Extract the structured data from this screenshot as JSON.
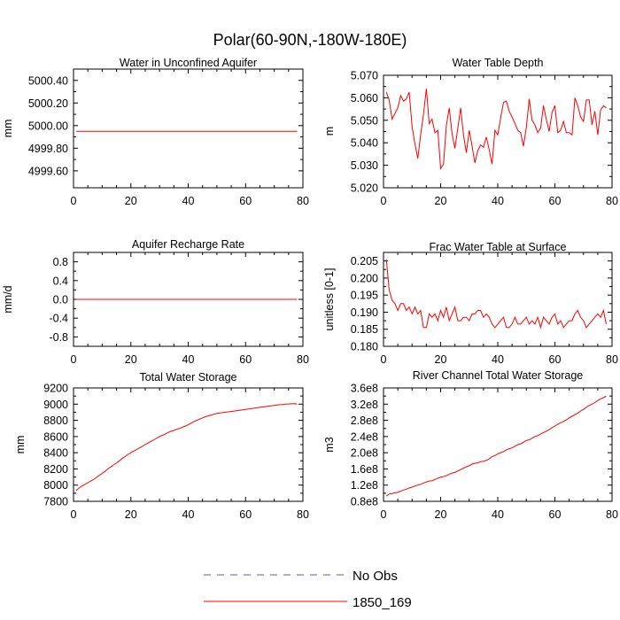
{
  "figure_title": "Polar(60-90N,-180W-180E)",
  "legend": [
    {
      "label": "No Obs",
      "color": "#5a5ab4",
      "dash": true
    },
    {
      "label": "1850_169",
      "color": "#ff0000",
      "dash": false
    }
  ],
  "chart_data": [
    {
      "id": "unconfined-aquifer",
      "type": "line",
      "title": "Water in Unconfined Aquifer",
      "ylabel": "mm",
      "xlim": [
        0,
        80
      ],
      "ylim": [
        4999.45,
        5000.5
      ],
      "xticks": [
        0,
        20,
        40,
        60,
        80
      ],
      "yticks": [
        4999.6,
        4999.8,
        5000.0,
        5000.2,
        5000.4
      ],
      "ytick_labels": [
        "4999.60",
        "4999.80",
        "5000.00",
        "5000.20",
        "5000.40"
      ],
      "series": [
        {
          "name": "1850_169",
          "color": "#ff0000",
          "x": [
            1,
            78
          ],
          "y": [
            4999.95,
            4999.95
          ]
        }
      ]
    },
    {
      "id": "water-table-depth",
      "type": "line",
      "title": "Water Table Depth",
      "ylabel": "m",
      "xlim": [
        0,
        80
      ],
      "ylim": [
        5.02,
        5.07
      ],
      "xticks": [
        0,
        20,
        40,
        60,
        80
      ],
      "yticks": [
        5.02,
        5.03,
        5.04,
        5.05,
        5.06,
        5.07
      ],
      "ytick_labels": [
        "5.020",
        "5.030",
        "5.040",
        "5.050",
        "5.060",
        "5.070"
      ],
      "series": [
        {
          "name": "1850_169",
          "color": "#ff0000",
          "x": [
            1,
            2,
            3,
            4,
            5,
            6,
            7,
            8,
            9,
            10,
            11,
            12,
            13,
            14,
            15,
            16,
            17,
            18,
            19,
            20,
            21,
            22,
            23,
            24,
            25,
            26,
            27,
            28,
            29,
            30,
            31,
            32,
            33,
            34,
            35,
            36,
            37,
            38,
            39,
            40,
            41,
            42,
            43,
            44,
            45,
            46,
            47,
            48,
            49,
            50,
            51,
            52,
            53,
            54,
            55,
            56,
            57,
            58,
            59,
            60,
            61,
            62,
            63,
            64,
            65,
            66,
            67,
            68,
            69,
            70,
            71,
            72,
            73,
            74,
            75,
            76,
            77,
            78
          ],
          "y": [
            5.0625,
            5.059,
            5.0505,
            5.053,
            5.0555,
            5.061,
            5.0585,
            5.0595,
            5.0625,
            5.047,
            5.0395,
            5.033,
            5.0435,
            5.0525,
            5.064,
            5.0485,
            5.0505,
            5.0445,
            5.0455,
            5.0285,
            5.0305,
            5.0475,
            5.0555,
            5.044,
            5.0375,
            5.0465,
            5.0555,
            5.0435,
            5.0355,
            5.0455,
            5.0385,
            5.031,
            5.0365,
            5.039,
            5.038,
            5.0425,
            5.037,
            5.0305,
            5.0455,
            5.0435,
            5.051,
            5.058,
            5.0585,
            5.054,
            5.0515,
            5.0485,
            5.0455,
            5.0445,
            5.0385,
            5.047,
            5.0595,
            5.05,
            5.048,
            5.0445,
            5.0465,
            5.0565,
            5.0505,
            5.045,
            5.0535,
            5.0565,
            5.0445,
            5.0455,
            5.0495,
            5.0445,
            5.0445,
            5.0435,
            5.06,
            5.0565,
            5.0515,
            5.0495,
            5.059,
            5.059,
            5.048,
            5.054,
            5.0435,
            5.0545,
            5.0565,
            5.0555
          ]
        }
      ]
    },
    {
      "id": "aquifer-recharge-rate",
      "type": "line",
      "title": "Aquifer Recharge Rate",
      "ylabel": "mm/d",
      "xlim": [
        0,
        80
      ],
      "ylim": [
        -1.0,
        1.0
      ],
      "xticks": [
        0,
        20,
        40,
        60,
        80
      ],
      "yticks": [
        -0.8,
        -0.4,
        0.0,
        0.4,
        0.8
      ],
      "ytick_labels": [
        "-0.8",
        "-0.4",
        "0.0",
        "0.4",
        "0.8"
      ],
      "series": [
        {
          "name": "1850_169",
          "color": "#ff0000",
          "x": [
            1,
            78
          ],
          "y": [
            0.0,
            0.0
          ]
        }
      ]
    },
    {
      "id": "frac-water-table",
      "type": "line",
      "title": "Frac Water Table at Surface",
      "ylabel": "unitless [0-1]",
      "xlim": [
        0,
        80
      ],
      "ylim": [
        0.18,
        0.2075
      ],
      "xticks": [
        0,
        20,
        40,
        60,
        80
      ],
      "yticks": [
        0.18,
        0.185,
        0.19,
        0.195,
        0.2,
        0.205
      ],
      "ytick_labels": [
        "0.180",
        "0.185",
        "0.190",
        "0.195",
        "0.200",
        "0.205"
      ],
      "series": [
        {
          "name": "1850_169",
          "color": "#ff0000",
          "x": [
            1,
            2,
            3,
            4,
            5,
            6,
            7,
            8,
            9,
            10,
            11,
            12,
            13,
            14,
            15,
            16,
            17,
            18,
            19,
            20,
            21,
            22,
            23,
            24,
            25,
            26,
            27,
            28,
            29,
            30,
            31,
            32,
            33,
            34,
            35,
            36,
            37,
            38,
            39,
            40,
            41,
            42,
            43,
            44,
            45,
            46,
            47,
            48,
            49,
            50,
            51,
            52,
            53,
            54,
            55,
            56,
            57,
            58,
            59,
            60,
            61,
            62,
            63,
            64,
            65,
            66,
            67,
            68,
            69,
            70,
            71,
            72,
            73,
            74,
            75,
            76,
            77,
            78
          ],
          "y": [
            0.2055,
            0.1965,
            0.1935,
            0.1925,
            0.1905,
            0.1925,
            0.1925,
            0.1905,
            0.1915,
            0.1895,
            0.1915,
            0.1895,
            0.1905,
            0.1855,
            0.1855,
            0.1895,
            0.1885,
            0.1895,
            0.1875,
            0.1905,
            0.1885,
            0.1915,
            0.1875,
            0.1895,
            0.1915,
            0.1875,
            0.1875,
            0.1885,
            0.1885,
            0.1875,
            0.1895,
            0.1895,
            0.1905,
            0.1905,
            0.1885,
            0.1895,
            0.1885,
            0.1865,
            0.1855,
            0.1865,
            0.1875,
            0.1885,
            0.1855,
            0.1855,
            0.1865,
            0.1885,
            0.1865,
            0.1865,
            0.1875,
            0.1885,
            0.1865,
            0.1875,
            0.1865,
            0.1885,
            0.1855,
            0.1885,
            0.1875,
            0.1865,
            0.1885,
            0.1895,
            0.1865,
            0.1875,
            0.1855,
            0.1865,
            0.1875,
            0.1875,
            0.1895,
            0.1905,
            0.1885,
            0.1875,
            0.1855,
            0.1865,
            0.1875,
            0.1885,
            0.1895,
            0.1885,
            0.1905,
            0.1865
          ]
        }
      ]
    },
    {
      "id": "total-water-storage",
      "type": "line",
      "title": "Total Water Storage",
      "ylabel": "mm",
      "xlim": [
        0,
        80
      ],
      "ylim": [
        7800,
        9200
      ],
      "xticks": [
        0,
        20,
        40,
        60,
        80
      ],
      "yticks": [
        7800,
        8000,
        8200,
        8400,
        8600,
        8800,
        9000,
        9200
      ],
      "ytick_labels": [
        "7800",
        "8000",
        "8200",
        "8400",
        "8600",
        "8800",
        "9000",
        "9200"
      ],
      "series": [
        {
          "name": "1850_169",
          "color": "#ff0000",
          "x": [
            1,
            2,
            3,
            4,
            5,
            6,
            7,
            8,
            9,
            10,
            11,
            12,
            13,
            14,
            15,
            16,
            17,
            18,
            19,
            20,
            21,
            22,
            23,
            24,
            25,
            26,
            27,
            28,
            29,
            30,
            31,
            32,
            33,
            34,
            35,
            36,
            37,
            38,
            39,
            40,
            41,
            42,
            43,
            44,
            45,
            46,
            47,
            48,
            49,
            50,
            51,
            52,
            53,
            54,
            55,
            56,
            57,
            58,
            59,
            60,
            61,
            62,
            63,
            64,
            65,
            66,
            67,
            68,
            69,
            70,
            71,
            72,
            73,
            74,
            75,
            76,
            77,
            78
          ],
          "y": [
            7935,
            7965,
            7990,
            8010,
            8030,
            8050,
            8070,
            8095,
            8120,
            8145,
            8170,
            8200,
            8225,
            8250,
            8275,
            8300,
            8330,
            8355,
            8380,
            8400,
            8420,
            8440,
            8460,
            8480,
            8500,
            8520,
            8540,
            8560,
            8580,
            8600,
            8615,
            8630,
            8650,
            8665,
            8675,
            8690,
            8700,
            8715,
            8730,
            8745,
            8765,
            8785,
            8800,
            8815,
            8830,
            8845,
            8855,
            8865,
            8875,
            8885,
            8890,
            8895,
            8900,
            8905,
            8910,
            8915,
            8920,
            8925,
            8930,
            8935,
            8940,
            8945,
            8950,
            8955,
            8960,
            8965,
            8970,
            8975,
            8980,
            8985,
            8990,
            8993,
            8996,
            9000,
            9002,
            9004,
            9006,
            9000
          ]
        }
      ]
    },
    {
      "id": "river-channel-storage",
      "type": "line",
      "title": "River Channel Total Water Storage",
      "ylabel": "m3",
      "xlim": [
        0,
        80
      ],
      "ylim": [
        0.8,
        3.6
      ],
      "yscale_label": "e8",
      "xticks": [
        0,
        20,
        40,
        60,
        80
      ],
      "yticks": [
        0.8,
        1.2,
        1.6,
        2.0,
        2.4,
        2.8,
        3.2,
        3.6
      ],
      "ytick_labels": [
        "0.8e8",
        "1.2e8",
        "1.6e8",
        "2.0e8",
        "2.4e8",
        "2.8e8",
        "3.2e8",
        "3.6e8"
      ],
      "series": [
        {
          "name": "1850_169",
          "color": "#ff0000",
          "x": [
            1,
            2,
            3,
            4,
            5,
            6,
            7,
            8,
            9,
            10,
            11,
            12,
            13,
            14,
            15,
            16,
            17,
            18,
            19,
            20,
            21,
            22,
            23,
            24,
            25,
            26,
            27,
            28,
            29,
            30,
            31,
            32,
            33,
            34,
            35,
            36,
            37,
            38,
            39,
            40,
            41,
            42,
            43,
            44,
            45,
            46,
            47,
            48,
            49,
            50,
            51,
            52,
            53,
            54,
            55,
            56,
            57,
            58,
            59,
            60,
            61,
            62,
            63,
            64,
            65,
            66,
            67,
            68,
            69,
            70,
            71,
            72,
            73,
            74,
            75,
            76,
            77,
            78
          ],
          "y": [
            0.93,
            0.98,
            0.99,
            1.01,
            1.02,
            1.05,
            1.08,
            1.1,
            1.13,
            1.15,
            1.18,
            1.2,
            1.22,
            1.25,
            1.28,
            1.3,
            1.31,
            1.34,
            1.37,
            1.4,
            1.41,
            1.43,
            1.47,
            1.5,
            1.51,
            1.55,
            1.58,
            1.62,
            1.65,
            1.68,
            1.72,
            1.74,
            1.75,
            1.78,
            1.79,
            1.81,
            1.85,
            1.9,
            1.93,
            1.97,
            2.0,
            2.03,
            2.07,
            2.1,
            2.12,
            2.16,
            2.2,
            2.22,
            2.26,
            2.3,
            2.32,
            2.36,
            2.4,
            2.42,
            2.46,
            2.5,
            2.53,
            2.57,
            2.62,
            2.66,
            2.7,
            2.74,
            2.77,
            2.81,
            2.86,
            2.9,
            2.94,
            2.98,
            3.03,
            3.07,
            3.12,
            3.17,
            3.2,
            3.24,
            3.29,
            3.33,
            3.36,
            3.4
          ]
        }
      ]
    }
  ]
}
